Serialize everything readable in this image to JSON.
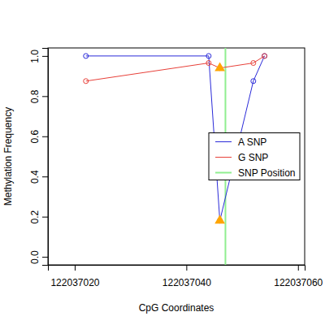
{
  "chart_data": {
    "type": "line",
    "x_label": "CpG Coordinates",
    "y_label": "Methylation Frequency",
    "x": [
      122037022,
      122037044,
      122037046,
      122037052,
      122037054
    ],
    "series": [
      {
        "name": "A SNP",
        "color": "#2b2bd9",
        "marker": "circle",
        "values": [
          1.0,
          1.0,
          0.18,
          0.875,
          1.0
        ]
      },
      {
        "name": "G SNP",
        "color": "#e8413a",
        "marker": "circle",
        "values": [
          0.875,
          0.965,
          0.94,
          0.965,
          1.0
        ]
      },
      {
        "type": "scatter",
        "marker": "triangle",
        "color": "#ffa500",
        "x": [
          122037046,
          122037046
        ],
        "values": [
          0.18,
          0.94
        ]
      }
    ],
    "snp_position": {
      "name": "SNP Position",
      "value": 122037047,
      "color": "#90ee90"
    },
    "xlim": [
      122037015.2,
      122037061.2
    ],
    "ylim": [
      -0.04,
      1.04
    ],
    "xticks": [
      122037020,
      122037040,
      122037060
    ],
    "yticks": [
      {
        "value": 0,
        "label": "0.0"
      },
      0.2,
      0.4,
      0.6,
      0.8,
      {
        "value": 1,
        "label": "1.0"
      }
    ],
    "legend": "right"
  }
}
